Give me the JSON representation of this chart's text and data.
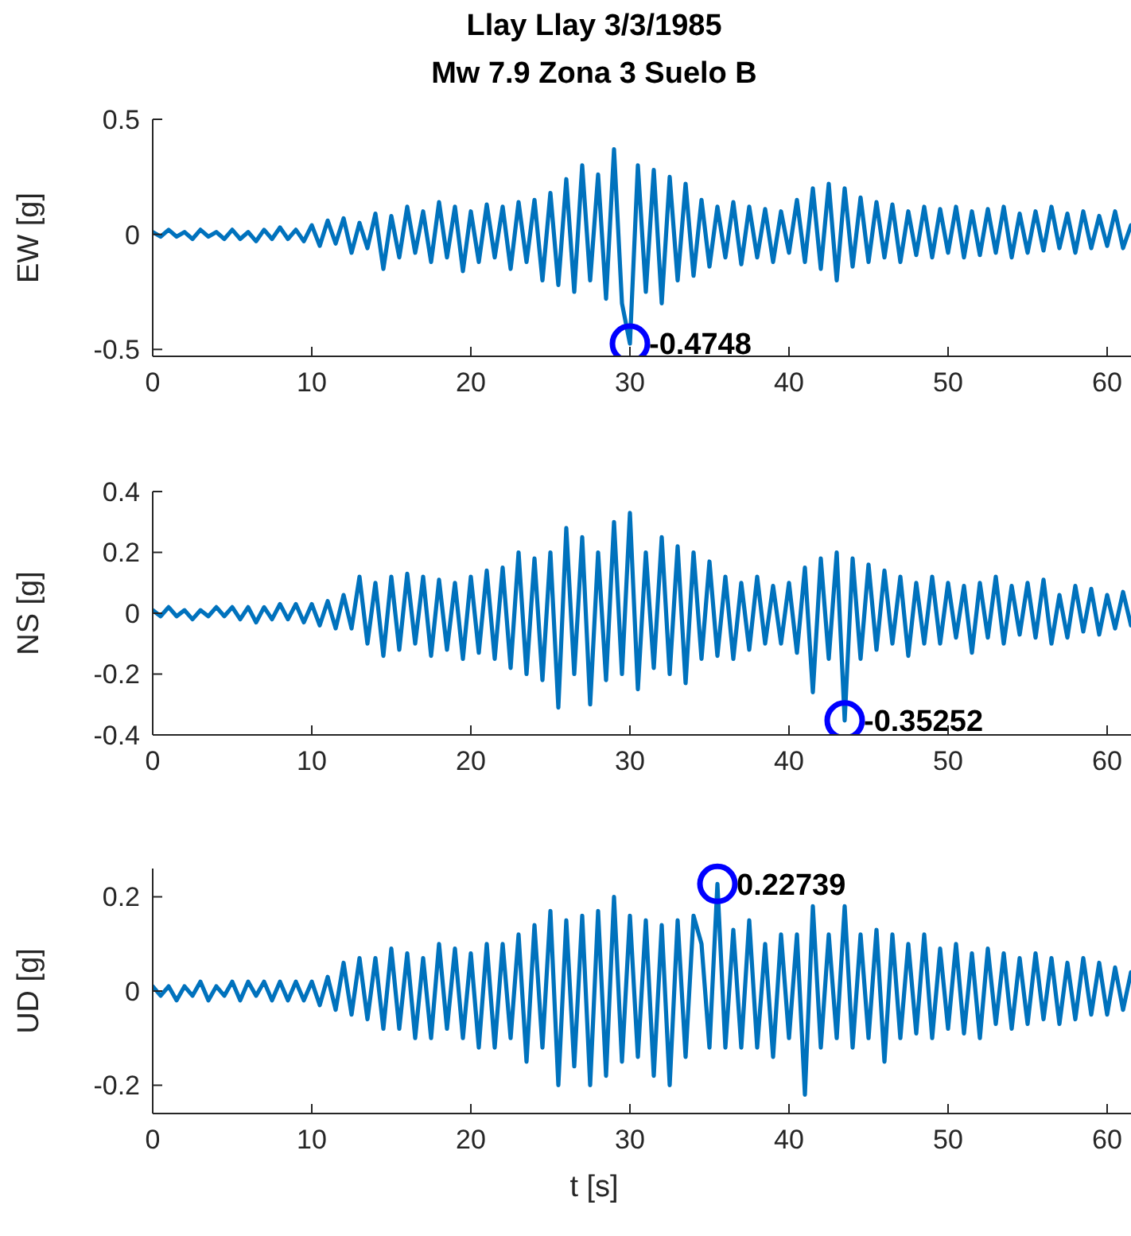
{
  "chart_data": [
    {
      "type": "line",
      "title": "Llay Llay 3/3/1985",
      "subtitle": "Mw 7.9 Zona 3 Suelo B",
      "ylabel": "EW [g]",
      "xlim": [
        0,
        61.5
      ],
      "xticks": [
        0,
        10,
        20,
        30,
        40,
        50,
        60
      ],
      "ylim": [
        -0.53,
        0.5
      ],
      "yticks": [
        -0.5,
        0,
        0.5
      ],
      "x": [
        0,
        0.5,
        1,
        1.5,
        2,
        2.5,
        3,
        3.5,
        4,
        4.5,
        5,
        5.5,
        6,
        6.5,
        7,
        7.5,
        8,
        8.5,
        9,
        9.5,
        10,
        10.5,
        11,
        11.5,
        12,
        12.5,
        13,
        13.5,
        14,
        14.5,
        15,
        15.5,
        16,
        16.5,
        17,
        17.5,
        18,
        18.5,
        19,
        19.5,
        20,
        20.5,
        21,
        21.5,
        22,
        22.5,
        23,
        23.5,
        24,
        24.5,
        25,
        25.5,
        26,
        26.5,
        27,
        27.5,
        28,
        28.5,
        29,
        29.5,
        30,
        30.5,
        31,
        31.5,
        32,
        32.5,
        33,
        33.5,
        34,
        34.5,
        35,
        35.5,
        36,
        36.5,
        37,
        37.5,
        38,
        38.5,
        39,
        39.5,
        40,
        40.5,
        41,
        41.5,
        42,
        42.5,
        43,
        43.5,
        44,
        44.5,
        45,
        45.5,
        46,
        46.5,
        47,
        47.5,
        48,
        48.5,
        49,
        49.5,
        50,
        50.5,
        51,
        51.5,
        52,
        52.5,
        53,
        53.5,
        54,
        54.5,
        55,
        55.5,
        56,
        56.5,
        57,
        57.5,
        58,
        58.5,
        59,
        59.5,
        60,
        60.5,
        61,
        61.5
      ],
      "series": [
        {
          "color": "#0072bd",
          "values": [
            0.01,
            -0.01,
            0.02,
            -0.01,
            0.01,
            -0.02,
            0.02,
            -0.01,
            0.01,
            -0.02,
            0.02,
            -0.02,
            0.01,
            -0.03,
            0.02,
            -0.02,
            0.03,
            -0.02,
            0.02,
            -0.03,
            0.04,
            -0.05,
            0.06,
            -0.04,
            0.07,
            -0.08,
            0.05,
            -0.06,
            0.09,
            -0.15,
            0.08,
            -0.1,
            0.12,
            -0.08,
            0.1,
            -0.12,
            0.14,
            -0.1,
            0.12,
            -0.16,
            0.1,
            -0.12,
            0.13,
            -0.1,
            0.12,
            -0.15,
            0.14,
            -0.12,
            0.15,
            -0.2,
            0.18,
            -0.22,
            0.24,
            -0.25,
            0.3,
            -0.2,
            0.26,
            -0.28,
            0.37,
            -0.3,
            -0.4748,
            0.3,
            -0.25,
            0.28,
            -0.3,
            0.25,
            -0.2,
            0.22,
            -0.18,
            0.15,
            -0.14,
            0.12,
            -0.1,
            0.14,
            -0.13,
            0.12,
            -0.1,
            0.11,
            -0.12,
            0.1,
            -0.08,
            0.15,
            -0.12,
            0.2,
            -0.15,
            0.22,
            -0.2,
            0.2,
            -0.14,
            0.16,
            -0.12,
            0.14,
            -0.1,
            0.13,
            -0.12,
            0.1,
            -0.09,
            0.12,
            -0.1,
            0.11,
            -0.08,
            0.12,
            -0.1,
            0.1,
            -0.09,
            0.11,
            -0.08,
            0.12,
            -0.1,
            0.09,
            -0.08,
            0.1,
            -0.07,
            0.12,
            -0.06,
            0.09,
            -0.08,
            0.1,
            -0.06,
            0.08,
            -0.05,
            0.1,
            -0.06,
            0.04
          ]
        },
        {
          "type": "scatter",
          "color": "#0000ff",
          "marker": "circle",
          "x": [
            30
          ],
          "values": [
            -0.4748
          ],
          "value_labels": [
            "-0.4748"
          ]
        }
      ]
    },
    {
      "type": "line",
      "ylabel": "NS [g]",
      "xlim": [
        0,
        61.5
      ],
      "xticks": [
        0,
        10,
        20,
        30,
        40,
        50,
        60
      ],
      "ylim": [
        -0.4,
        0.4
      ],
      "yticks": [
        -0.4,
        -0.2,
        0,
        0.2,
        0.4
      ],
      "x": [
        0,
        0.5,
        1,
        1.5,
        2,
        2.5,
        3,
        3.5,
        4,
        4.5,
        5,
        5.5,
        6,
        6.5,
        7,
        7.5,
        8,
        8.5,
        9,
        9.5,
        10,
        10.5,
        11,
        11.5,
        12,
        12.5,
        13,
        13.5,
        14,
        14.5,
        15,
        15.5,
        16,
        16.5,
        17,
        17.5,
        18,
        18.5,
        19,
        19.5,
        20,
        20.5,
        21,
        21.5,
        22,
        22.5,
        23,
        23.5,
        24,
        24.5,
        25,
        25.5,
        26,
        26.5,
        27,
        27.5,
        28,
        28.5,
        29,
        29.5,
        30,
        30.5,
        31,
        31.5,
        32,
        32.5,
        33,
        33.5,
        34,
        34.5,
        35,
        35.5,
        36,
        36.5,
        37,
        37.5,
        38,
        38.5,
        39,
        39.5,
        40,
        40.5,
        41,
        41.5,
        42,
        42.5,
        43,
        43.5,
        44,
        44.5,
        45,
        45.5,
        46,
        46.5,
        47,
        47.5,
        48,
        48.5,
        49,
        49.5,
        50,
        50.5,
        51,
        51.5,
        52,
        52.5,
        53,
        53.5,
        54,
        54.5,
        55,
        55.5,
        56,
        56.5,
        57,
        57.5,
        58,
        58.5,
        59,
        59.5,
        60,
        60.5,
        61,
        61.5
      ],
      "series": [
        {
          "color": "#0072bd",
          "values": [
            0.01,
            -0.01,
            0.02,
            -0.01,
            0.01,
            -0.02,
            0.01,
            -0.01,
            0.02,
            -0.01,
            0.02,
            -0.02,
            0.02,
            -0.03,
            0.02,
            -0.02,
            0.03,
            -0.02,
            0.03,
            -0.03,
            0.03,
            -0.04,
            0.04,
            -0.05,
            0.06,
            -0.05,
            0.12,
            -0.1,
            0.1,
            -0.14,
            0.12,
            -0.12,
            0.13,
            -0.1,
            0.12,
            -0.14,
            0.11,
            -0.12,
            0.1,
            -0.15,
            0.12,
            -0.13,
            0.14,
            -0.15,
            0.15,
            -0.18,
            0.2,
            -0.2,
            0.18,
            -0.22,
            0.2,
            -0.31,
            0.28,
            -0.2,
            0.25,
            -0.3,
            0.2,
            -0.22,
            0.3,
            -0.2,
            0.33,
            -0.25,
            0.2,
            -0.18,
            0.25,
            -0.2,
            0.22,
            -0.23,
            0.2,
            -0.15,
            0.17,
            -0.14,
            0.12,
            -0.15,
            0.1,
            -0.12,
            0.12,
            -0.1,
            0.09,
            -0.1,
            0.1,
            -0.13,
            0.15,
            -0.26,
            0.18,
            -0.15,
            0.2,
            -0.35252,
            0.18,
            -0.15,
            0.16,
            -0.12,
            0.14,
            -0.1,
            0.12,
            -0.14,
            0.1,
            -0.1,
            0.12,
            -0.1,
            0.1,
            -0.08,
            0.09,
            -0.13,
            0.1,
            -0.08,
            0.12,
            -0.1,
            0.09,
            -0.07,
            0.1,
            -0.08,
            0.11,
            -0.1,
            0.06,
            -0.08,
            0.09,
            -0.06,
            0.08,
            -0.07,
            0.06,
            -0.05,
            0.07,
            -0.04
          ]
        },
        {
          "type": "scatter",
          "color": "#0000ff",
          "marker": "circle",
          "x": [
            43.5
          ],
          "values": [
            -0.35252
          ],
          "value_labels": [
            "-0.35252"
          ]
        }
      ]
    },
    {
      "type": "line",
      "ylabel": "UD [g]",
      "xlabel": "t [s]",
      "xlim": [
        0,
        61.5
      ],
      "xticks": [
        0,
        10,
        20,
        30,
        40,
        50,
        60
      ],
      "ylim": [
        -0.26,
        0.26
      ],
      "yticks": [
        -0.2,
        0,
        0.2
      ],
      "x": [
        0,
        0.5,
        1,
        1.5,
        2,
        2.5,
        3,
        3.5,
        4,
        4.5,
        5,
        5.5,
        6,
        6.5,
        7,
        7.5,
        8,
        8.5,
        9,
        9.5,
        10,
        10.5,
        11,
        11.5,
        12,
        12.5,
        13,
        13.5,
        14,
        14.5,
        15,
        15.5,
        16,
        16.5,
        17,
        17.5,
        18,
        18.5,
        19,
        19.5,
        20,
        20.5,
        21,
        21.5,
        22,
        22.5,
        23,
        23.5,
        24,
        24.5,
        25,
        25.5,
        26,
        26.5,
        27,
        27.5,
        28,
        28.5,
        29,
        29.5,
        30,
        30.5,
        31,
        31.5,
        32,
        32.5,
        33,
        33.5,
        34,
        34.5,
        35,
        35.5,
        36,
        36.5,
        37,
        37.5,
        38,
        38.5,
        39,
        39.5,
        40,
        40.5,
        41,
        41.5,
        42,
        42.5,
        43,
        43.5,
        44,
        44.5,
        45,
        45.5,
        46,
        46.5,
        47,
        47.5,
        48,
        48.5,
        49,
        49.5,
        50,
        50.5,
        51,
        51.5,
        52,
        52.5,
        53,
        53.5,
        54,
        54.5,
        55,
        55.5,
        56,
        56.5,
        57,
        57.5,
        58,
        58.5,
        59,
        59.5,
        60,
        60.5,
        61,
        61.5
      ],
      "series": [
        {
          "color": "#0072bd",
          "values": [
            0.01,
            -0.01,
            0.01,
            -0.02,
            0.01,
            -0.01,
            0.02,
            -0.02,
            0.01,
            -0.01,
            0.02,
            -0.02,
            0.02,
            -0.01,
            0.02,
            -0.02,
            0.02,
            -0.02,
            0.02,
            -0.02,
            0.02,
            -0.03,
            0.03,
            -0.04,
            0.06,
            -0.05,
            0.07,
            -0.06,
            0.07,
            -0.08,
            0.09,
            -0.08,
            0.08,
            -0.1,
            0.07,
            -0.1,
            0.1,
            -0.08,
            0.09,
            -0.1,
            0.08,
            -0.12,
            0.1,
            -0.12,
            0.1,
            -0.1,
            0.12,
            -0.15,
            0.14,
            -0.12,
            0.17,
            -0.2,
            0.15,
            -0.16,
            0.16,
            -0.2,
            0.17,
            -0.18,
            0.2,
            -0.15,
            0.16,
            -0.14,
            0.15,
            -0.18,
            0.14,
            -0.2,
            0.15,
            -0.14,
            0.16,
            0.1,
            -0.12,
            0.22739,
            -0.12,
            0.13,
            -0.12,
            0.15,
            -0.12,
            0.1,
            -0.14,
            0.12,
            -0.1,
            0.12,
            -0.22,
            0.18,
            -0.12,
            0.12,
            -0.1,
            0.18,
            -0.12,
            0.12,
            -0.1,
            0.13,
            -0.15,
            0.12,
            -0.1,
            0.1,
            -0.09,
            0.12,
            -0.1,
            0.09,
            -0.08,
            0.1,
            -0.09,
            0.08,
            -0.1,
            0.09,
            -0.07,
            0.08,
            -0.08,
            0.07,
            -0.07,
            0.08,
            -0.06,
            0.07,
            -0.07,
            0.06,
            -0.06,
            0.07,
            -0.05,
            0.06,
            -0.05,
            0.05,
            -0.04,
            0.04
          ]
        },
        {
          "type": "scatter",
          "color": "#0000ff",
          "marker": "circle",
          "x": [
            35.5
          ],
          "values": [
            0.22739
          ],
          "value_labels": [
            "0.22739"
          ]
        }
      ]
    }
  ]
}
